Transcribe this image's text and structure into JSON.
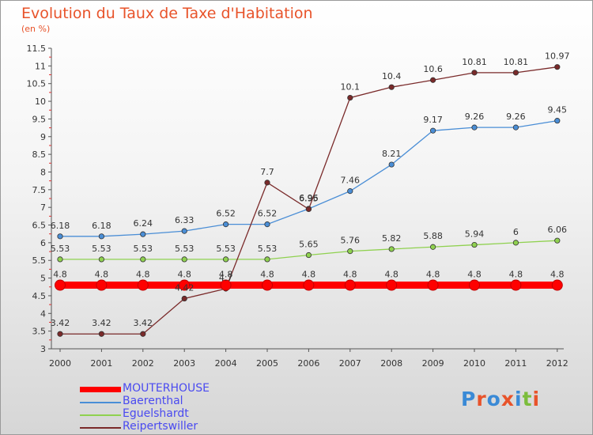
{
  "header": {
    "title": "Evolution du Taux de Taxe d'Habitation",
    "unit": "(en %)"
  },
  "logo": {
    "text": "Proxiti",
    "letters": [
      "P",
      "r",
      "o",
      "x",
      "i",
      "t",
      "i"
    ],
    "colors": [
      "#3a8ad6",
      "#e8532a",
      "#3a8ad6",
      "#e8532a",
      "#3a8ad6",
      "#7cbd3c",
      "#e8532a"
    ]
  },
  "chart_data": {
    "type": "line",
    "title": "Evolution du Taux de Taxe d'Habitation",
    "ylabel": "(en %)",
    "xlabel": "",
    "x": [
      "2000",
      "2001",
      "2002",
      "2003",
      "2004",
      "2005",
      "2006",
      "2007",
      "2008",
      "2009",
      "2010",
      "2011",
      "2012"
    ],
    "ylim": [
      3,
      11.5
    ],
    "yticks": [
      "3",
      "3.5",
      "4",
      "4.5",
      "5",
      "5.5",
      "6",
      "6.5",
      "7",
      "7.5",
      "8",
      "8.5",
      "9",
      "9.5",
      "10",
      "10.5",
      "11",
      "11.5"
    ],
    "grid": false,
    "legend_position": "bottom-left",
    "series": [
      {
        "name": "MOUTERHOUSE",
        "color": "#ff0000",
        "values": [
          4.8,
          4.8,
          4.8,
          4.8,
          4.8,
          4.8,
          4.8,
          4.8,
          4.8,
          4.8,
          4.8,
          4.8,
          4.8
        ],
        "labels": [
          "4.8",
          "4.8",
          "4.8",
          "4.8",
          "4.8",
          "4.8",
          "4.8",
          "4.8",
          "4.8",
          "4.8",
          "4.8",
          "4.8",
          "4.8"
        ]
      },
      {
        "name": "Baerenthal",
        "color": "#4a8ed6",
        "values": [
          6.18,
          6.18,
          6.24,
          6.33,
          6.52,
          6.52,
          6.96,
          7.46,
          8.21,
          9.17,
          9.26,
          9.26,
          9.45
        ],
        "labels": [
          "6.18",
          "6.18",
          "6.24",
          "6.33",
          "6.52",
          "6.52",
          "6.96",
          "7.46",
          "8.21",
          "9.17",
          "9.26",
          "9.26",
          "9.45"
        ]
      },
      {
        "name": "Eguelshardt",
        "color": "#8fd14f",
        "values": [
          5.53,
          5.53,
          5.53,
          5.53,
          5.53,
          5.53,
          5.65,
          5.76,
          5.82,
          5.88,
          5.94,
          6,
          6.06
        ],
        "labels": [
          "5.53",
          "5.53",
          "5.53",
          "5.53",
          "5.53",
          "5.53",
          "5.65",
          "5.76",
          "5.82",
          "5.88",
          "5.94",
          "6",
          "6.06"
        ]
      },
      {
        "name": "Reipertswiller",
        "color": "#7a2a2a",
        "values": [
          3.42,
          3.42,
          3.42,
          4.42,
          4.7,
          7.7,
          6.95,
          10.1,
          10.4,
          10.6,
          10.81,
          10.81,
          10.97
        ],
        "labels": [
          "3.42",
          "3.42",
          "3.42",
          "4.42",
          "4.7",
          "7.7",
          "6.95",
          "10.1",
          "10.4",
          "10.6",
          "10.81",
          "10.81",
          "10.97"
        ]
      }
    ]
  }
}
